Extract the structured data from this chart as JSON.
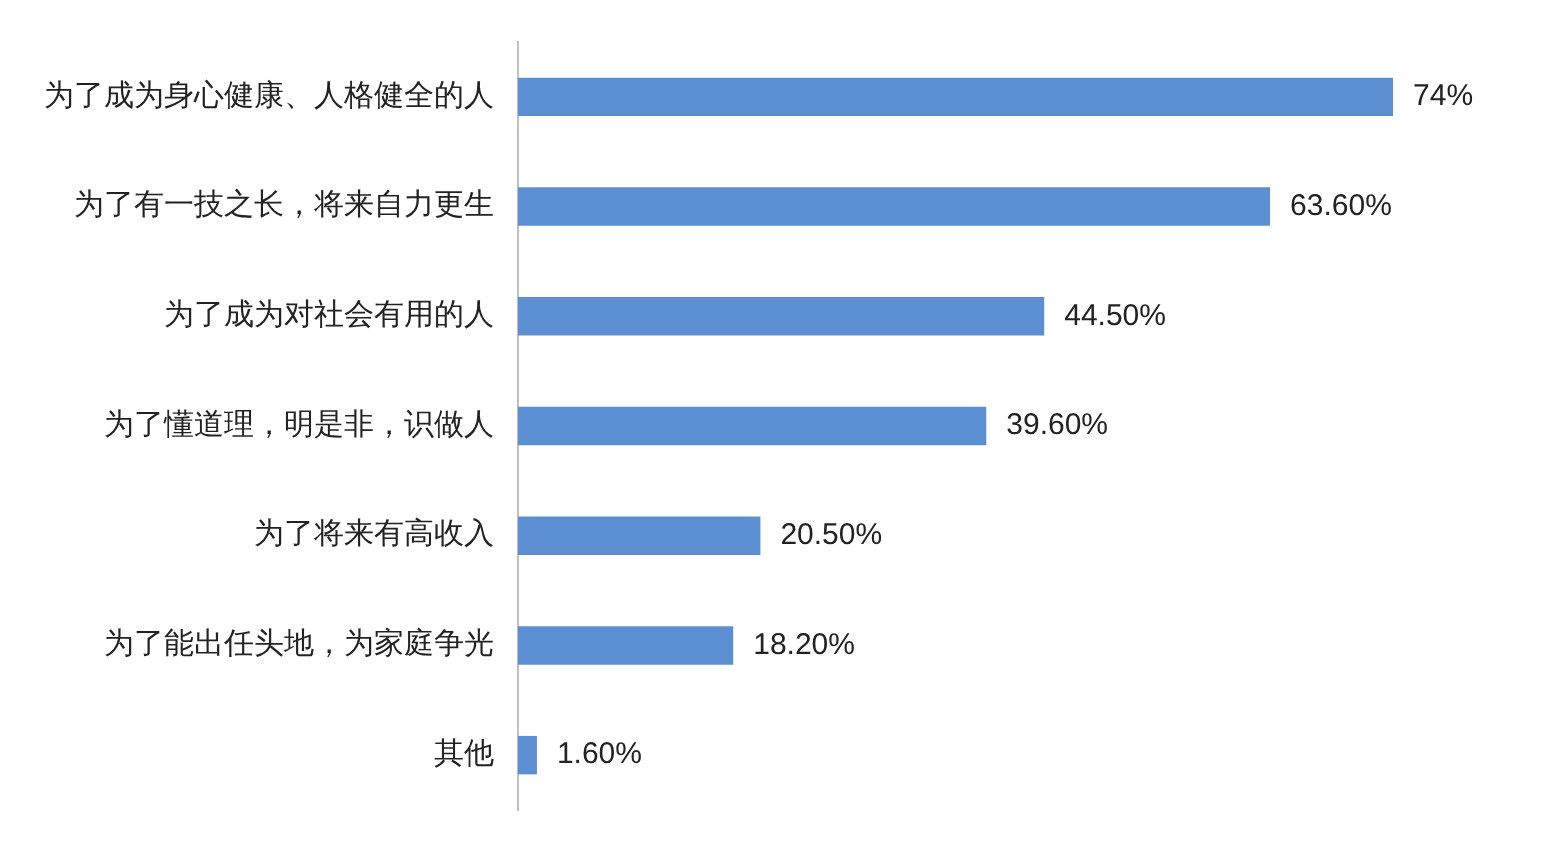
{
  "chart_data": {
    "type": "bar",
    "orientation": "horizontal",
    "categories": [
      "为了成为身心健康、人格健全的人",
      "为了有一技之长，将来自力更生",
      "为了成为对社会有用的人",
      "为了懂道理，明是非，识做人",
      "为了将来有高收入",
      "为了能出任头地，为家庭争光",
      "其他"
    ],
    "values": [
      74,
      63.6,
      44.5,
      39.6,
      20.5,
      18.2,
      1.6
    ],
    "value_labels": [
      "74%",
      "63.60%",
      "44.50%",
      "39.60%",
      "20.50%",
      "18.20%",
      "1.60%"
    ],
    "color": "#5b8fd1"
  }
}
